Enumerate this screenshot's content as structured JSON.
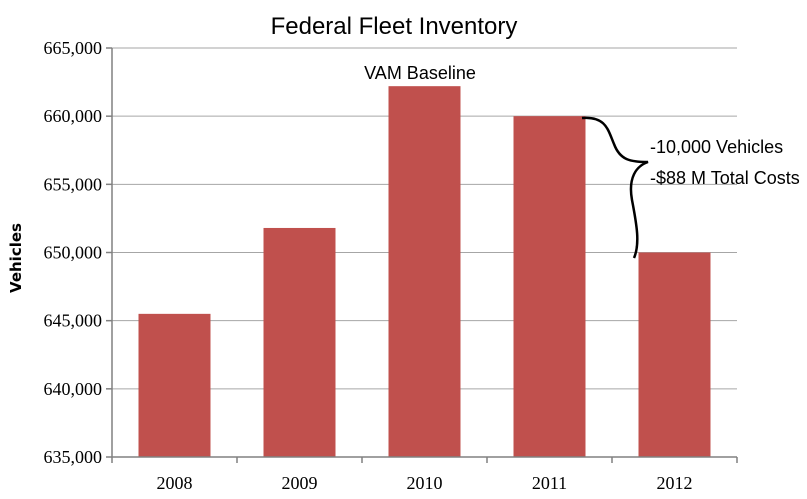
{
  "chart_data": {
    "type": "bar",
    "title": "Federal Fleet Inventory",
    "xlabel": "",
    "ylabel": "Vehicles",
    "categories": [
      "2008",
      "2009",
      "2010",
      "2011",
      "2012"
    ],
    "values": [
      645500,
      651800,
      662200,
      660000,
      650000
    ],
    "ylim": [
      635000,
      665000
    ],
    "yticks": [
      635000,
      640000,
      645000,
      650000,
      655000,
      660000,
      665000
    ],
    "ytick_labels": [
      "635,000",
      "640,000",
      "645,000",
      "650,000",
      "655,000",
      "660,000",
      "665,000"
    ],
    "grid": true,
    "legend": "none",
    "bar_color": "#c0504d",
    "annotations": {
      "baseline_label": "VAM Baseline",
      "reduction_vehicles": "-10,000 Vehicles",
      "reduction_costs": "-$88 M Total Costs"
    }
  }
}
